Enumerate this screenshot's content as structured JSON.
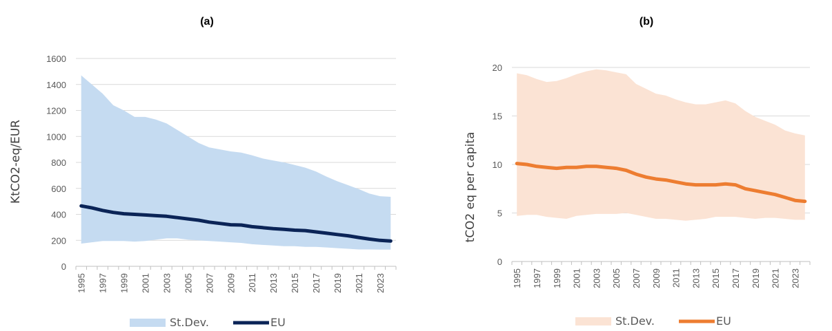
{
  "chart_data": [
    {
      "type": "area",
      "title": "(a)",
      "xlabel": "",
      "ylabel": "KtCO2-eq/EUR",
      "ylim": [
        0,
        1600
      ],
      "yticks": [
        0,
        200,
        400,
        600,
        800,
        1000,
        1200,
        1400,
        1600
      ],
      "x": [
        1995,
        1996,
        1997,
        1998,
        1999,
        2000,
        2001,
        2002,
        2003,
        2004,
        2005,
        2006,
        2007,
        2008,
        2009,
        2010,
        2011,
        2012,
        2013,
        2014,
        2015,
        2016,
        2017,
        2018,
        2019,
        2020,
        2021,
        2022,
        2023,
        2024
      ],
      "x_tick_labels": [
        "1995",
        "1997",
        "1999",
        "2001",
        "2003",
        "2005",
        "2007",
        "2009",
        "2011",
        "2013",
        "2015",
        "2017",
        "2019",
        "2021",
        "2023"
      ],
      "grid": true,
      "legend_position": "bottom",
      "series": [
        {
          "name": "St.Dev.",
          "kind": "band",
          "color": "#c5dbf1",
          "upper": [
            1470,
            1400,
            1330,
            1240,
            1200,
            1150,
            1150,
            1130,
            1100,
            1050,
            1000,
            950,
            915,
            900,
            885,
            875,
            855,
            830,
            815,
            800,
            780,
            760,
            730,
            690,
            655,
            625,
            595,
            560,
            540,
            535
          ],
          "lower": [
            175,
            185,
            195,
            195,
            195,
            190,
            195,
            205,
            215,
            215,
            205,
            200,
            195,
            190,
            185,
            180,
            170,
            165,
            160,
            155,
            155,
            150,
            150,
            145,
            140,
            135,
            130,
            130,
            128,
            128
          ]
        },
        {
          "name": "EU",
          "kind": "line",
          "color": "#0b2457",
          "values": [
            465,
            450,
            430,
            415,
            405,
            400,
            395,
            390,
            385,
            375,
            365,
            355,
            340,
            330,
            320,
            318,
            305,
            298,
            290,
            285,
            278,
            275,
            265,
            255,
            245,
            235,
            222,
            210,
            200,
            195
          ]
        }
      ]
    },
    {
      "type": "area",
      "title": "(b)",
      "xlabel": "",
      "ylabel": "tCO2 eq per capita",
      "ylim": [
        0,
        20
      ],
      "yticks": [
        0,
        5,
        10,
        15,
        20
      ],
      "x": [
        1995,
        1996,
        1997,
        1998,
        1999,
        2000,
        2001,
        2002,
        2003,
        2004,
        2005,
        2006,
        2007,
        2008,
        2009,
        2010,
        2011,
        2012,
        2013,
        2014,
        2015,
        2016,
        2017,
        2018,
        2019,
        2020,
        2021,
        2022,
        2023,
        2024
      ],
      "x_tick_labels": [
        "1995",
        "1997",
        "1999",
        "2001",
        "2003",
        "2005",
        "2007",
        "2009",
        "2011",
        "2013",
        "2015",
        "2017",
        "2019",
        "2021",
        "2023"
      ],
      "grid": true,
      "legend_position": "bottom",
      "series": [
        {
          "name": "St.Dev.",
          "kind": "band",
          "color": "#fbe3d4",
          "upper": [
            19.4,
            19.2,
            18.8,
            18.5,
            18.6,
            18.9,
            19.3,
            19.6,
            19.8,
            19.7,
            19.5,
            19.3,
            18.3,
            17.8,
            17.3,
            17.1,
            16.7,
            16.4,
            16.2,
            16.2,
            16.4,
            16.6,
            16.3,
            15.5,
            14.9,
            14.5,
            14.1,
            13.5,
            13.2,
            13.0
          ],
          "lower": [
            4.7,
            4.8,
            4.8,
            4.6,
            4.5,
            4.4,
            4.7,
            4.8,
            4.9,
            4.9,
            4.9,
            5.0,
            4.8,
            4.6,
            4.4,
            4.4,
            4.3,
            4.2,
            4.3,
            4.4,
            4.6,
            4.6,
            4.6,
            4.5,
            4.4,
            4.5,
            4.5,
            4.4,
            4.3,
            4.3
          ]
        },
        {
          "name": "EU",
          "kind": "line",
          "color": "#ed7d31",
          "values": [
            10.1,
            10.0,
            9.8,
            9.7,
            9.6,
            9.7,
            9.7,
            9.8,
            9.8,
            9.7,
            9.6,
            9.4,
            9.0,
            8.7,
            8.5,
            8.4,
            8.2,
            8.0,
            7.9,
            7.9,
            7.9,
            8.0,
            7.9,
            7.5,
            7.3,
            7.1,
            6.9,
            6.6,
            6.3,
            6.2
          ]
        }
      ]
    }
  ]
}
